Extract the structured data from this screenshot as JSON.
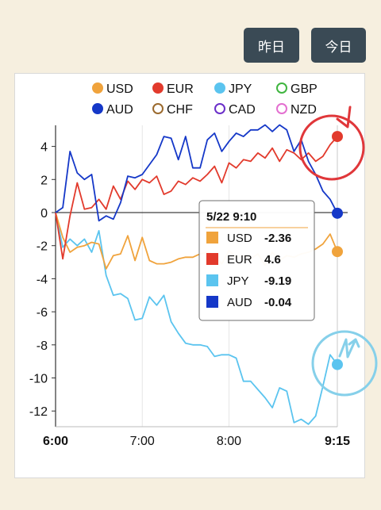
{
  "buttons": {
    "yesterday": "昨日",
    "today": "今日"
  },
  "colors": {
    "USD": "#f0a33c",
    "EUR": "#e23a2c",
    "JPY": "#5bc4ef",
    "GBP": "#3fb53f",
    "AUD": "#1538c8",
    "CHF": "#9b6a2e",
    "CAD": "#6b2fc9",
    "NZD": "#e36fd0",
    "annotation_red": "#e0373a",
    "annotation_blue": "#86d0ea"
  },
  "chart_data": {
    "type": "line",
    "x_ticks": [
      "6:00",
      "7:00",
      "8:00",
      "9:15"
    ],
    "ylim": [
      -13,
      5.5
    ],
    "y_ticks": [
      4,
      2,
      0,
      -2,
      -4,
      -6,
      -8,
      -10,
      -12
    ],
    "legend": {
      "position": "top",
      "entries": [
        {
          "name": "USD",
          "style": "filled"
        },
        {
          "name": "EUR",
          "style": "filled"
        },
        {
          "name": "JPY",
          "style": "filled"
        },
        {
          "name": "GBP",
          "style": "hollow"
        },
        {
          "name": "AUD",
          "style": "filled"
        },
        {
          "name": "CHF",
          "style": "hollow"
        },
        {
          "name": "CAD",
          "style": "hollow"
        },
        {
          "name": "NZD",
          "style": "hollow"
        }
      ]
    },
    "x_minutes": [
      0,
      5,
      10,
      15,
      20,
      25,
      30,
      35,
      40,
      45,
      50,
      55,
      60,
      65,
      70,
      75,
      80,
      85,
      90,
      95,
      100,
      105,
      110,
      115,
      120,
      125,
      130,
      135,
      140,
      145,
      150,
      155,
      160,
      165,
      170,
      175,
      180,
      185,
      190,
      195
    ],
    "series": [
      {
        "name": "USD",
        "values": [
          0,
          -1.5,
          -2.4,
          -2.1,
          -2.0,
          -1.8,
          -1.9,
          -3.4,
          -2.6,
          -2.5,
          -1.4,
          -2.9,
          -1.5,
          -2.9,
          -3.1,
          -3.1,
          -3.0,
          -2.8,
          -2.7,
          -2.7,
          -2.5,
          -2.4,
          -2.6,
          -3.1,
          -2.3,
          -2.7,
          -2.6,
          -2.8,
          -2.5,
          -3.2,
          -2.4,
          -2.9,
          -2.6,
          -2.7,
          -2.5,
          -2.4,
          -2.2,
          -1.9,
          -1.3,
          -2.36
        ]
      },
      {
        "name": "EUR",
        "values": [
          0,
          -2.8,
          -0.2,
          1.8,
          0.2,
          0.3,
          0.8,
          0.2,
          1.6,
          0.8,
          1.9,
          1.4,
          2.0,
          1.8,
          2.2,
          1.1,
          1.3,
          1.9,
          1.7,
          2.1,
          1.9,
          2.3,
          2.8,
          1.8,
          3.0,
          2.7,
          3.2,
          3.1,
          3.6,
          3.3,
          3.9,
          3.1,
          3.8,
          3.6,
          3.2,
          3.6,
          3.1,
          3.4,
          4.1,
          4.6
        ]
      },
      {
        "name": "JPY",
        "values": [
          0,
          -2.1,
          -1.6,
          -2.0,
          -1.6,
          -2.4,
          -1.1,
          -3.8,
          -5.0,
          -4.9,
          -5.2,
          -6.5,
          -6.4,
          -5.1,
          -5.6,
          -5.0,
          -6.6,
          -7.3,
          -7.9,
          -8.0,
          -8.0,
          -8.1,
          -8.7,
          -8.6,
          -8.6,
          -8.8,
          -10.2,
          -10.2,
          -10.7,
          -11.2,
          -11.8,
          -10.6,
          -10.8,
          -12.7,
          -12.5,
          -12.8,
          -12.3,
          -10.5,
          -8.6,
          -9.19
        ]
      },
      {
        "name": "AUD",
        "values": [
          0,
          0.3,
          3.7,
          2.4,
          2.0,
          2.3,
          -0.5,
          -0.2,
          -0.4,
          0.6,
          2.2,
          2.1,
          2.3,
          2.9,
          3.5,
          4.6,
          4.5,
          3.2,
          4.6,
          2.7,
          2.7,
          4.4,
          4.8,
          3.7,
          4.3,
          4.8,
          4.6,
          5.0,
          5.0,
          5.3,
          4.9,
          5.3,
          5.0,
          3.7,
          4.4,
          3.1,
          2.3,
          1.3,
          0.8,
          -0.04
        ]
      }
    ],
    "tooltip": {
      "time": "5/22 9:10",
      "rows": [
        {
          "name": "USD",
          "value": "-2.36"
        },
        {
          "name": "EUR",
          "value": "4.6"
        },
        {
          "name": "JPY",
          "value": "-9.19"
        },
        {
          "name": "AUD",
          "value": "-0.04"
        }
      ]
    }
  }
}
